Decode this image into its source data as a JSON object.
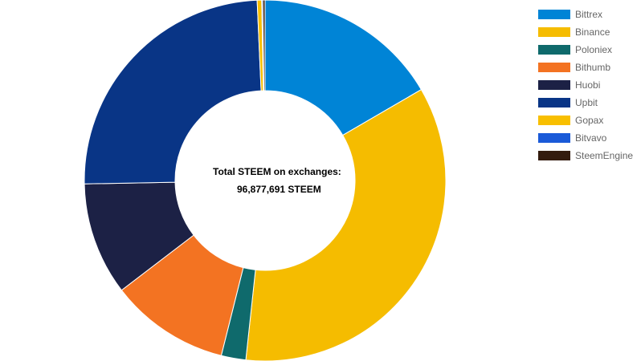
{
  "chart_data": {
    "type": "pie",
    "variant": "doughnut",
    "center_title": "Total STEEM on exchanges:",
    "center_value": "96,877,691 STEEM",
    "legend_position": "right",
    "series": [
      {
        "name": "Bittrex",
        "value": 16.6,
        "color": "#0084d6"
      },
      {
        "name": "Binance",
        "value": 35.1,
        "color": "#f5bc00"
      },
      {
        "name": "Poloniex",
        "value": 2.2,
        "color": "#0f6a6c"
      },
      {
        "name": "Bithumb",
        "value": 10.7,
        "color": "#f37322"
      },
      {
        "name": "Huobi",
        "value": 10.1,
        "color": "#1c2145"
      },
      {
        "name": "Upbit",
        "value": 24.6,
        "color": "#093586"
      },
      {
        "name": "Gopax",
        "value": 0.4,
        "color": "#f8bf00"
      },
      {
        "name": "Bitvavo",
        "value": 0.1,
        "color": "#1a5ad8"
      },
      {
        "name": "SteemEngine",
        "value": 0.2,
        "color": "#331b0e"
      }
    ]
  }
}
